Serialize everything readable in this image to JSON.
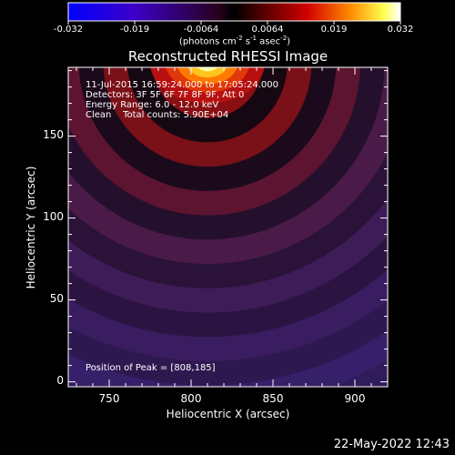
{
  "colorbar": {
    "ticks": [
      "-0.032",
      "-0.019",
      "-0.0064",
      "0.0064",
      "0.019",
      "0.032"
    ],
    "units_prefix": "(photons cm",
    "units_exp1": "-2",
    "units_mid1": " s",
    "units_exp2": "-1",
    "units_mid2": " asec",
    "units_exp3": "-2",
    "units_suffix": ")"
  },
  "annotations": {
    "line1": "11-Jul-2015 16:59:24.000 to 17:05:24.000",
    "line2": "Detectors: 3F 5F 6F 7F 8F 9F, Att 0",
    "line3": "Energy Range: 6.0 - 12.0 keV",
    "line4": "Clean    Total counts: 5.90E+04",
    "peak": "Position of Peak = [808,185]"
  },
  "timestamp": "22-May-2022 12:43",
  "chart_data": {
    "type": "heatmap",
    "title": "Reconstructed RHESSI Image",
    "xlabel": "Heliocentric X (arcsec)",
    "ylabel": "Heliocentric Y (arcsec)",
    "xlim": [
      725,
      920
    ],
    "ylim": [
      -3,
      192
    ],
    "xticks": [
      750,
      800,
      850,
      900
    ],
    "yticks": [
      0,
      50,
      100,
      150
    ],
    "colorbar_range": [
      -0.032,
      0.032
    ],
    "colormap": "rhessi-diverging (blue-purple-black-red-yellow-white)",
    "peak_position": [
      808,
      185
    ],
    "source_center": [
      810,
      195
    ],
    "ring_spacing_arcsec": 27
  }
}
